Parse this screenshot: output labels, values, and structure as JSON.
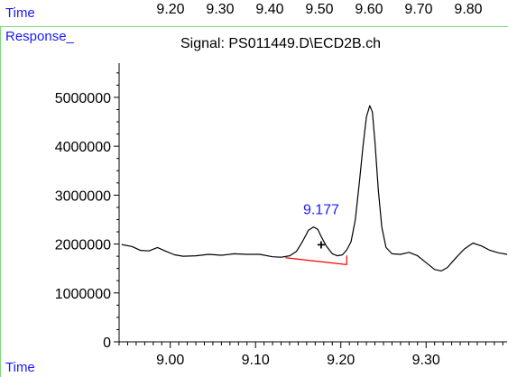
{
  "top_axis": {
    "label": "Time",
    "ticks": [
      "9.20",
      "9.30",
      "9.40",
      "9.50",
      "9.60",
      "9.70",
      "9.80"
    ]
  },
  "chart_data": {
    "type": "line",
    "title": "Signal: PS011449.D\\ECD2B.ch",
    "xlabel": "Time",
    "ylabel": "Response_",
    "xlim": [
      8.94,
      9.395
    ],
    "ylim": [
      0,
      5700000
    ],
    "x_ticks": [
      9.0,
      9.1,
      9.2,
      9.3
    ],
    "x_tick_labels": [
      "9.00",
      "9.10",
      "9.20",
      "9.30"
    ],
    "y_ticks": [
      0,
      1000000,
      2000000,
      3000000,
      4000000,
      5000000
    ],
    "y_tick_labels": [
      "0",
      "1000000",
      "2000000",
      "3000000",
      "4000000",
      "5000000"
    ],
    "grid": false,
    "series": [
      {
        "x": [
          8.943,
          8.955,
          8.965,
          8.975,
          8.985,
          8.995,
          9.005,
          9.015,
          9.03,
          9.045,
          9.06,
          9.075,
          9.09,
          9.105,
          9.12,
          9.13,
          9.14,
          9.148,
          9.155,
          9.162,
          9.168,
          9.173,
          9.177,
          9.183,
          9.19,
          9.196,
          9.202,
          9.207,
          9.212,
          9.217,
          9.222,
          9.226,
          9.23,
          9.234,
          9.237,
          9.24,
          9.244,
          9.248,
          9.253,
          9.26,
          9.27,
          9.28,
          9.29,
          9.3,
          9.31,
          9.318,
          9.325,
          9.335,
          9.345,
          9.355,
          9.365,
          9.375,
          9.385,
          9.395
        ],
        "y": [
          1990000,
          1950000,
          1870000,
          1860000,
          1930000,
          1850000,
          1780000,
          1750000,
          1760000,
          1790000,
          1770000,
          1800000,
          1790000,
          1790000,
          1740000,
          1730000,
          1760000,
          1850000,
          2050000,
          2280000,
          2350000,
          2300000,
          2150000,
          1960000,
          1800000,
          1760000,
          1780000,
          1880000,
          2050000,
          2500000,
          3300000,
          4000000,
          4600000,
          4830000,
          4700000,
          4100000,
          3100000,
          2350000,
          1930000,
          1800000,
          1790000,
          1830000,
          1760000,
          1620000,
          1480000,
          1450000,
          1520000,
          1720000,
          1900000,
          2020000,
          1960000,
          1870000,
          1820000,
          1790000
        ]
      }
    ],
    "baseline": {
      "x": [
        9.135,
        9.207
      ],
      "y": [
        1720000,
        1580000
      ],
      "color": "#ff0000"
    },
    "annotations": [
      {
        "text": "9.177",
        "x": 9.177,
        "y": 2350000
      },
      {
        "text": "+",
        "x": 9.177,
        "y": 1780000
      }
    ],
    "colors": {
      "line": "#000000",
      "label": "#1a1aff",
      "baseline": "#ff0000",
      "frame": "#7fd87f"
    }
  }
}
